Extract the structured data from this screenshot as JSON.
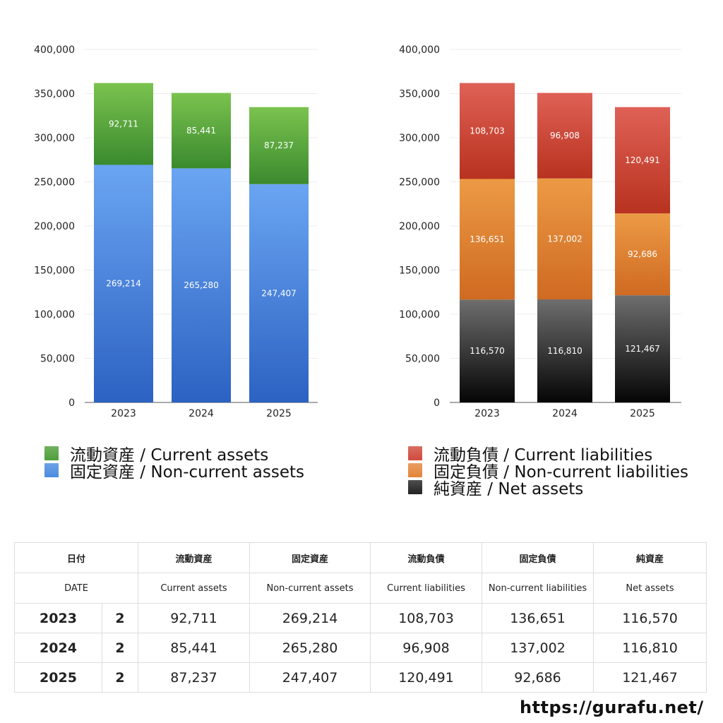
{
  "chart_data": [
    {
      "type": "bar",
      "stacked": true,
      "categories": [
        "2023",
        "2024",
        "2025"
      ],
      "ylim": [
        0,
        400000
      ],
      "yticks": [
        "0",
        "50,000",
        "100,000",
        "150,000",
        "200,000",
        "250,000",
        "300,000",
        "350,000",
        "400,000"
      ],
      "grid": true,
      "series": [
        {
          "name": "固定資産 / Non-current assets",
          "values": [
            269214,
            265280,
            247407
          ],
          "labels": [
            "269,214",
            "265,280",
            "247,407"
          ],
          "color_top": "#6aa5f2",
          "color_bottom": "#2c62c2"
        },
        {
          "name": "流動資産 / Current assets",
          "values": [
            92711,
            85441,
            87237
          ],
          "labels": [
            "92,711",
            "85,441",
            "87,237"
          ],
          "color_top": "#7bc34f",
          "color_bottom": "#3a8a2e"
        }
      ]
    },
    {
      "type": "bar",
      "stacked": true,
      "categories": [
        "2023",
        "2024",
        "2025"
      ],
      "ylim": [
        0,
        400000
      ],
      "yticks": [
        "0",
        "50,000",
        "100,000",
        "150,000",
        "200,000",
        "250,000",
        "300,000",
        "350,000",
        "400,000"
      ],
      "grid": true,
      "series": [
        {
          "name": "純資産 / Net assets",
          "values": [
            116570,
            116810,
            121467
          ],
          "labels": [
            "116,570",
            "116,810",
            "121,467"
          ],
          "color_top": "#6e6e6e",
          "color_bottom": "#050505"
        },
        {
          "name": "固定負債 / Non-current liabilities",
          "values": [
            136651,
            137002,
            92686
          ],
          "labels": [
            "136,651",
            "137,002",
            "92,686"
          ],
          "color_top": "#ec9a45",
          "color_bottom": "#cf6a22"
        },
        {
          "name": "流動負債 / Current liabilities",
          "values": [
            108703,
            96908,
            120491
          ],
          "labels": [
            "108,703",
            "96,908",
            "120,491"
          ],
          "color_top": "#df6156",
          "color_bottom": "#b8321f"
        }
      ]
    }
  ],
  "legend_left": [
    {
      "label": "流動資産 / Current assets",
      "color": "#4f9e3a"
    },
    {
      "label": "固定資産 / Non-current assets",
      "color": "#4a8be0"
    }
  ],
  "legend_right": [
    {
      "label": "流動負債 / Current liabilities",
      "color": "#d04a3c"
    },
    {
      "label": "固定負債 / Non-current liabilities",
      "color": "#e4853a"
    },
    {
      "label": "純資産 / Net assets",
      "color": "#222222"
    }
  ],
  "table": {
    "header_jp": [
      "日付",
      "",
      "流動資産",
      "固定資産",
      "流動負債",
      "固定負債",
      "純資産"
    ],
    "header_en": [
      "DATE",
      "",
      "Current assets",
      "Non-current assets",
      "Current liabilities",
      "Non-current liabilities",
      "Net assets"
    ],
    "rows": [
      [
        "2023",
        "2",
        "92,711",
        "269,214",
        "108,703",
        "136,651",
        "116,570"
      ],
      [
        "2024",
        "2",
        "85,441",
        "265,280",
        "96,908",
        "137,002",
        "116,810"
      ],
      [
        "2025",
        "2",
        "87,237",
        "247,407",
        "120,491",
        "92,686",
        "121,467"
      ]
    ]
  },
  "site_url": "https://gurafu.net/"
}
